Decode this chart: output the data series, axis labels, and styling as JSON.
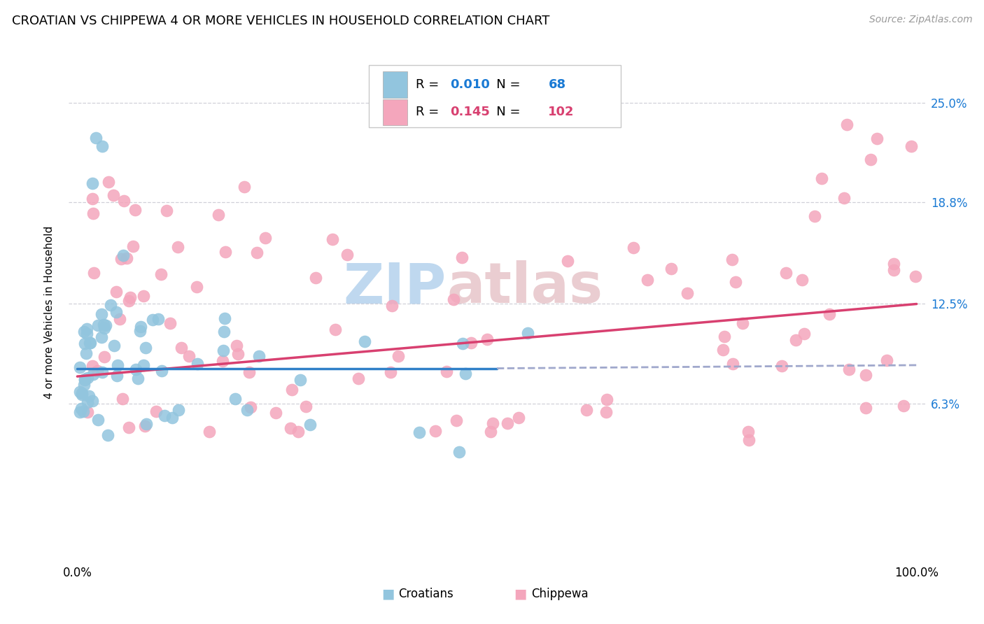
{
  "title": "CROATIAN VS CHIPPEWA 4 OR MORE VEHICLES IN HOUSEHOLD CORRELATION CHART",
  "source": "Source: ZipAtlas.com",
  "ylabel": "4 or more Vehicles in Household",
  "xlim": [
    -1,
    101
  ],
  "ylim": [
    -3.5,
    27.5
  ],
  "ytick_values": [
    6.3,
    12.5,
    18.8,
    25.0
  ],
  "ytick_labels_right": [
    "6.3%",
    "12.5%",
    "18.8%",
    "25.0%"
  ],
  "legend_R1": "0.010",
  "legend_N1": "68",
  "legend_R2": "0.145",
  "legend_N2": "102",
  "croatian_scatter_color": "#92c5de",
  "chippewa_scatter_color": "#f4a6bc",
  "croatian_line_color": "#3080c8",
  "chippewa_line_color": "#d84070",
  "dashed_extension_color": "#a0a8cc",
  "grid_color": "#d0d0d8",
  "watermark_zip_color": "#b8d4ee",
  "watermark_atlas_color": "#e8c8cc",
  "right_axis_color": "#1a7ad4",
  "background_color": "#ffffff",
  "title_fontsize": 13,
  "axis_label_fontsize": 11,
  "tick_fontsize": 12,
  "legend_fontsize": 13,
  "cro_line_start_x": 0,
  "cro_line_start_y": 8.5,
  "cro_line_end_x": 50,
  "cro_line_end_y": 8.5,
  "cro_dash_end_x": 100,
  "cro_dash_end_y": 8.7,
  "chi_line_start_x": 0,
  "chi_line_start_y": 8.0,
  "chi_line_end_x": 100,
  "chi_line_end_y": 12.5
}
